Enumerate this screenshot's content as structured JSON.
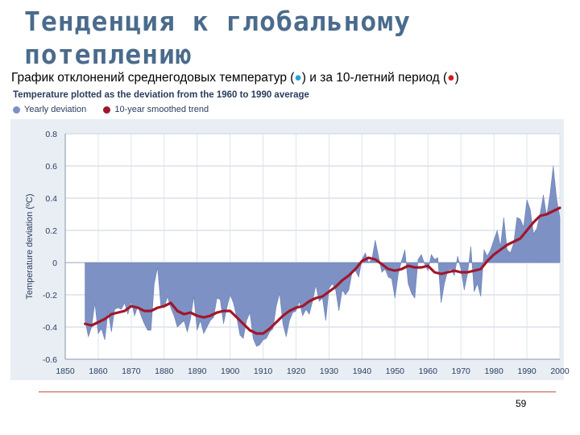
{
  "slide": {
    "title": "Тенденция к глобальному потеплению",
    "subtitle_part1": "График отклонений среднегодовых температур (",
    "subtitle_dot1": "●",
    "subtitle_part2": ") и за 10-летний период (",
    "subtitle_dot2": "●",
    "subtitle_part3": ")",
    "page_number": "59"
  },
  "colors": {
    "yearly": "#7d91c4",
    "trend": "#a0172a",
    "plot_bg": "#e8eef4",
    "title": "#4a6b8c"
  },
  "chart_data": {
    "type": "area",
    "title": "Temperature plotted as the deviation from the 1960 to 1990 average",
    "xlabel": "",
    "ylabel": "Temperature deviation (ºC)",
    "xlim": [
      1850,
      2000
    ],
    "ylim": [
      -0.6,
      0.8
    ],
    "xticks": [
      "1850",
      "1860",
      "1870",
      "1880",
      "1890",
      "1900",
      "1910",
      "1920",
      "1930",
      "1940",
      "1950",
      "1960",
      "1970",
      "1980",
      "1990",
      "2000"
    ],
    "yticks": [
      "0.8",
      "0.6",
      "0.4",
      "0.2",
      "0",
      "-0.2",
      "-0.4",
      "-0.6"
    ],
    "grid": true,
    "legend": "top-left",
    "series": [
      {
        "name": "Yearly deviation",
        "kind": "area",
        "x": [
          1856,
          1857,
          1858,
          1859,
          1860,
          1861,
          1862,
          1863,
          1864,
          1865,
          1866,
          1867,
          1868,
          1869,
          1870,
          1871,
          1872,
          1873,
          1874,
          1875,
          1876,
          1877,
          1878,
          1879,
          1880,
          1881,
          1882,
          1883,
          1884,
          1885,
          1886,
          1887,
          1888,
          1889,
          1890,
          1891,
          1892,
          1893,
          1894,
          1895,
          1896,
          1897,
          1898,
          1899,
          1900,
          1901,
          1902,
          1903,
          1904,
          1905,
          1906,
          1907,
          1908,
          1909,
          1910,
          1911,
          1912,
          1913,
          1914,
          1915,
          1916,
          1917,
          1918,
          1919,
          1920,
          1921,
          1922,
          1923,
          1924,
          1925,
          1926,
          1927,
          1928,
          1929,
          1930,
          1931,
          1932,
          1933,
          1934,
          1935,
          1936,
          1937,
          1938,
          1939,
          1940,
          1941,
          1942,
          1943,
          1944,
          1945,
          1946,
          1947,
          1948,
          1949,
          1950,
          1951,
          1952,
          1953,
          1954,
          1955,
          1956,
          1957,
          1958,
          1959,
          1960,
          1961,
          1962,
          1963,
          1964,
          1965,
          1966,
          1967,
          1968,
          1969,
          1970,
          1971,
          1972,
          1973,
          1974,
          1975,
          1976,
          1977,
          1978,
          1979,
          1980,
          1981,
          1982,
          1983,
          1984,
          1985,
          1986,
          1987,
          1988,
          1989,
          1990,
          1991,
          1992,
          1993,
          1994,
          1995,
          1996,
          1997,
          1998,
          1999,
          2000
        ],
        "values": [
          -0.36,
          -0.46,
          -0.4,
          -0.25,
          -0.44,
          -0.41,
          -0.48,
          -0.3,
          -0.43,
          -0.29,
          -0.28,
          -0.29,
          -0.25,
          -0.32,
          -0.24,
          -0.33,
          -0.27,
          -0.33,
          -0.38,
          -0.42,
          -0.42,
          -0.13,
          -0.03,
          -0.27,
          -0.28,
          -0.21,
          -0.28,
          -0.33,
          -0.4,
          -0.38,
          -0.36,
          -0.43,
          -0.35,
          -0.21,
          -0.42,
          -0.36,
          -0.44,
          -0.4,
          -0.36,
          -0.34,
          -0.22,
          -0.23,
          -0.38,
          -0.28,
          -0.2,
          -0.25,
          -0.34,
          -0.45,
          -0.47,
          -0.36,
          -0.31,
          -0.47,
          -0.52,
          -0.51,
          -0.48,
          -0.47,
          -0.43,
          -0.41,
          -0.27,
          -0.19,
          -0.38,
          -0.46,
          -0.36,
          -0.31,
          -0.3,
          -0.24,
          -0.33,
          -0.29,
          -0.32,
          -0.24,
          -0.14,
          -0.24,
          -0.22,
          -0.36,
          -0.16,
          -0.13,
          -0.17,
          -0.3,
          -0.17,
          -0.2,
          -0.17,
          -0.06,
          -0.05,
          -0.09,
          0.02,
          0.06,
          0.0,
          0.02,
          0.14,
          0.04,
          -0.06,
          -0.04,
          -0.09,
          -0.1,
          -0.22,
          -0.07,
          0.01,
          0.08,
          -0.13,
          -0.19,
          -0.22,
          0.02,
          0.05,
          -0.01,
          -0.05,
          0.05,
          0.02,
          0.03,
          -0.25,
          -0.13,
          -0.05,
          -0.04,
          -0.08,
          0.04,
          -0.04,
          -0.17,
          -0.07,
          0.1,
          -0.18,
          -0.13,
          -0.21,
          0.08,
          0.04,
          0.08,
          0.14,
          0.2,
          0.1,
          0.28,
          0.08,
          0.06,
          0.12,
          0.28,
          0.27,
          0.22,
          0.39,
          0.33,
          0.18,
          0.21,
          0.3,
          0.42,
          0.29,
          0.42,
          0.6,
          0.4,
          0.28
        ],
        "color": "#7d91c4"
      },
      {
        "name": "10-year smoothed trend",
        "kind": "line",
        "x": [
          1856,
          1858,
          1860,
          1862,
          1864,
          1866,
          1868,
          1870,
          1872,
          1874,
          1876,
          1878,
          1880,
          1882,
          1884,
          1886,
          1888,
          1890,
          1892,
          1894,
          1896,
          1898,
          1900,
          1902,
          1904,
          1906,
          1908,
          1910,
          1912,
          1914,
          1916,
          1918,
          1920,
          1922,
          1924,
          1926,
          1928,
          1930,
          1932,
          1934,
          1936,
          1938,
          1940,
          1942,
          1944,
          1946,
          1948,
          1950,
          1952,
          1954,
          1956,
          1958,
          1960,
          1962,
          1964,
          1966,
          1968,
          1970,
          1972,
          1974,
          1976,
          1978,
          1980,
          1982,
          1984,
          1986,
          1988,
          1990,
          1992,
          1994,
          1996,
          1998,
          2000
        ],
        "values": [
          -0.38,
          -0.39,
          -0.37,
          -0.35,
          -0.32,
          -0.31,
          -0.3,
          -0.27,
          -0.28,
          -0.3,
          -0.3,
          -0.28,
          -0.27,
          -0.25,
          -0.3,
          -0.32,
          -0.31,
          -0.33,
          -0.34,
          -0.33,
          -0.31,
          -0.3,
          -0.3,
          -0.34,
          -0.38,
          -0.42,
          -0.44,
          -0.44,
          -0.41,
          -0.37,
          -0.33,
          -0.3,
          -0.28,
          -0.27,
          -0.24,
          -0.22,
          -0.21,
          -0.18,
          -0.15,
          -0.11,
          -0.08,
          -0.04,
          0.01,
          0.03,
          0.02,
          -0.01,
          -0.04,
          -0.05,
          -0.04,
          -0.02,
          -0.03,
          -0.03,
          -0.02,
          -0.06,
          -0.07,
          -0.06,
          -0.05,
          -0.06,
          -0.06,
          -0.05,
          -0.04,
          0.01,
          0.05,
          0.08,
          0.11,
          0.13,
          0.15,
          0.2,
          0.25,
          0.29,
          0.3,
          0.32,
          0.34
        ],
        "color": "#a0172a"
      }
    ]
  }
}
